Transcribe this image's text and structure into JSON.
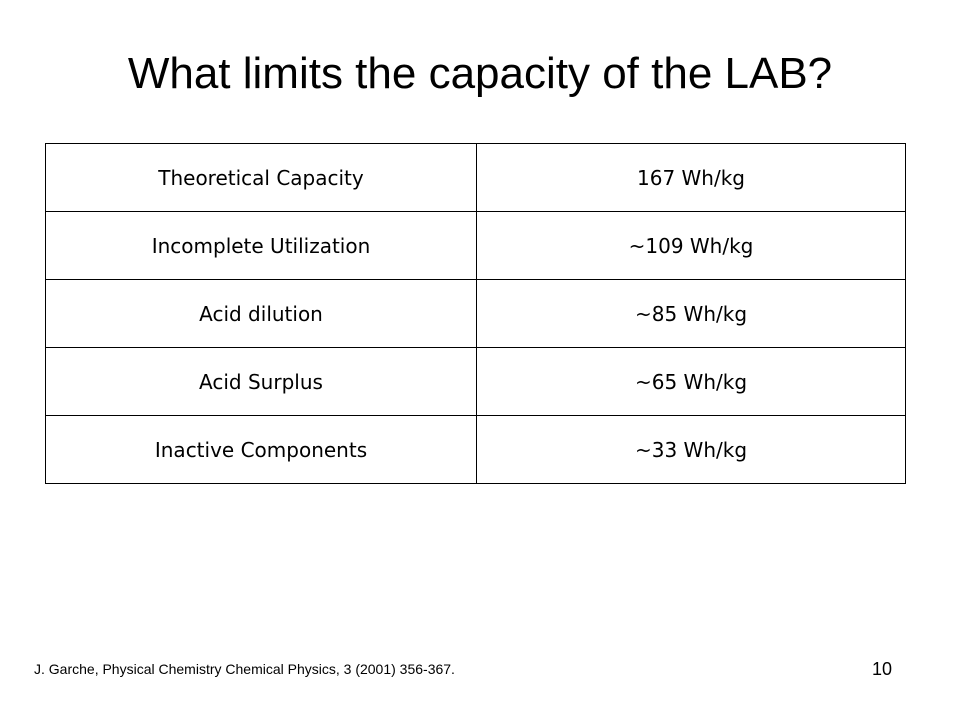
{
  "slide": {
    "title": "What limits the capacity of the LAB?",
    "citation": "J. Garche, Physical Chemistry Chemical Physics, 3 (2001) 356-367.",
    "page_number": "10"
  },
  "table": {
    "rows": [
      {
        "label": "Theoretical Capacity",
        "value": "167 Wh/kg"
      },
      {
        "label": "Incomplete Utilization",
        "value": "~109 Wh/kg"
      },
      {
        "label": "Acid dilution",
        "value": "~85 Wh/kg"
      },
      {
        "label": "Acid Surplus",
        "value": "~65 Wh/kg"
      },
      {
        "label": "Inactive Components",
        "value": "~33 Wh/kg"
      }
    ]
  }
}
